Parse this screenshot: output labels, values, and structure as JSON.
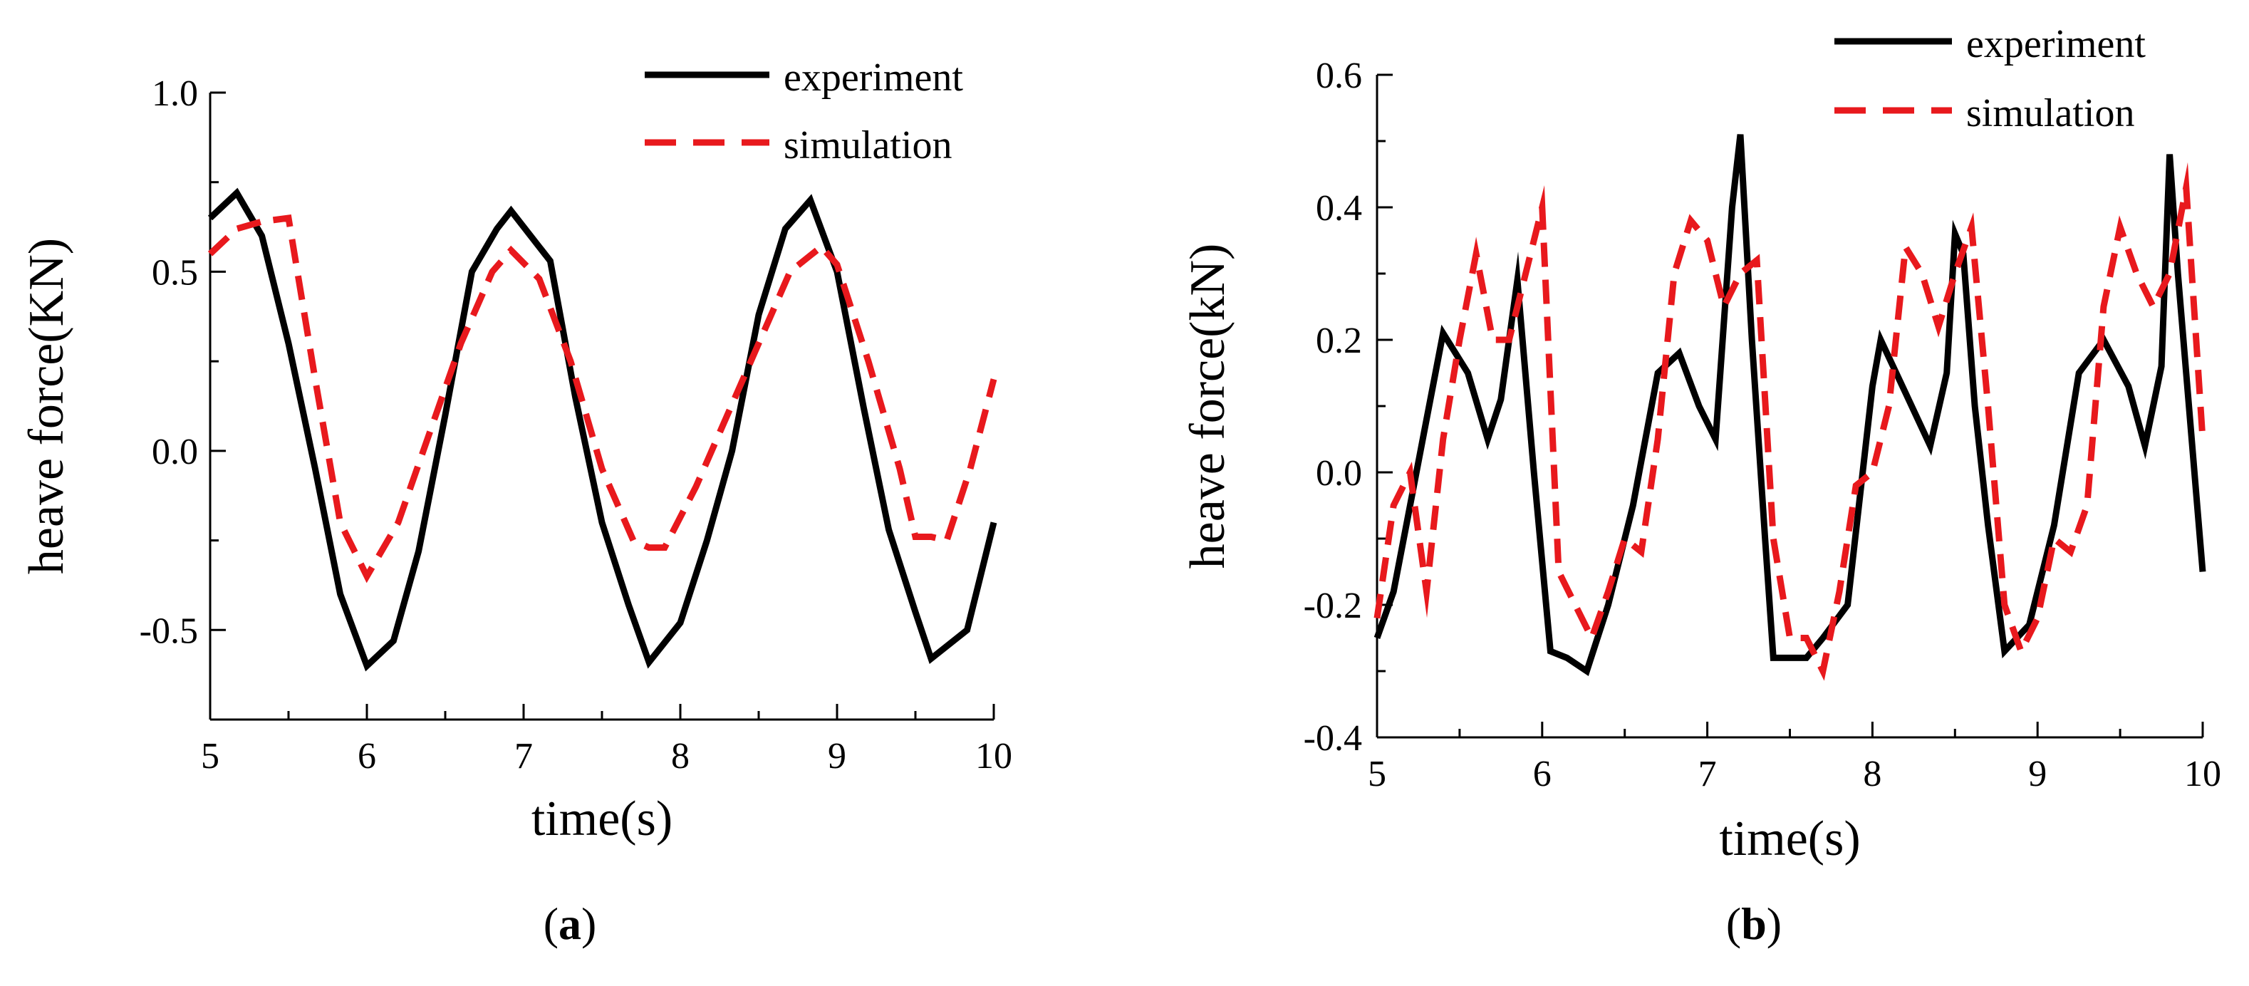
{
  "chart_data": [
    {
      "type": "line",
      "panel_label": {
        "open": "(",
        "letter": "a",
        "close": ")"
      },
      "xlabel": "time(s)",
      "ylabel": "heave force(KN)",
      "xlim": [
        5,
        10
      ],
      "ylim": [
        -0.75,
        1.0
      ],
      "xticks": [
        5,
        6,
        7,
        8,
        9,
        10
      ],
      "xtick_labels": [
        "5",
        "6",
        "7",
        "8",
        "9",
        "10"
      ],
      "yticks": [
        -0.5,
        0.0,
        0.5,
        1.0
      ],
      "ytick_labels": [
        "-0.5",
        "0.0",
        "0.5",
        "1.0"
      ],
      "legend_position": "top-right",
      "series": [
        {
          "name": "experiment",
          "color": "#000000",
          "style": "solid",
          "x": [
            5.0,
            5.17,
            5.33,
            5.5,
            5.67,
            5.83,
            6.0,
            6.17,
            6.33,
            6.5,
            6.67,
            6.83,
            6.92,
            7.17,
            7.33,
            7.5,
            7.67,
            7.8,
            8.0,
            8.17,
            8.33,
            8.5,
            8.67,
            8.83,
            9.0,
            9.17,
            9.33,
            9.5,
            9.6,
            9.83,
            10.0
          ],
          "y": [
            0.65,
            0.72,
            0.6,
            0.3,
            -0.05,
            -0.4,
            -0.6,
            -0.53,
            -0.28,
            0.1,
            0.5,
            0.62,
            0.67,
            0.53,
            0.15,
            -0.2,
            -0.43,
            -0.59,
            -0.48,
            -0.25,
            0.0,
            0.38,
            0.62,
            0.7,
            0.5,
            0.12,
            -0.22,
            -0.45,
            -0.58,
            -0.5,
            -0.2
          ]
        },
        {
          "name": "simulation",
          "color": "#e8191d",
          "style": "dashed",
          "x": [
            5.0,
            5.17,
            5.33,
            5.5,
            5.67,
            5.83,
            6.0,
            6.2,
            6.4,
            6.6,
            6.8,
            6.92,
            7.1,
            7.3,
            7.5,
            7.7,
            7.8,
            7.9,
            8.1,
            8.3,
            8.5,
            8.7,
            8.9,
            9.0,
            9.2,
            9.4,
            9.5,
            9.6,
            9.7,
            9.85,
            10.0
          ],
          "y": [
            0.55,
            0.62,
            0.64,
            0.65,
            0.2,
            -0.2,
            -0.35,
            -0.2,
            0.05,
            0.3,
            0.5,
            0.56,
            0.48,
            0.25,
            -0.05,
            -0.25,
            -0.27,
            -0.27,
            -0.1,
            0.1,
            0.3,
            0.5,
            0.57,
            0.52,
            0.25,
            -0.05,
            -0.24,
            -0.24,
            -0.25,
            -0.05,
            0.2
          ]
        }
      ]
    },
    {
      "type": "line",
      "panel_label": {
        "open": "(",
        "letter": "b",
        "close": ")"
      },
      "xlabel": "time(s)",
      "ylabel": "heave force(kN)",
      "xlim": [
        5,
        10
      ],
      "ylim": [
        -0.4,
        0.6
      ],
      "xticks": [
        5,
        6,
        7,
        8,
        9,
        10
      ],
      "xtick_labels": [
        "5",
        "6",
        "7",
        "8",
        "9",
        "10"
      ],
      "yticks": [
        -0.4,
        -0.2,
        0.0,
        0.2,
        0.4,
        0.6
      ],
      "ytick_labels": [
        "-0.4",
        "-0.2",
        "0.0",
        "0.2",
        "0.4",
        "0.6"
      ],
      "legend_position": "top-right",
      "series": [
        {
          "name": "experiment",
          "color": "#000000",
          "style": "solid",
          "x": [
            5.0,
            5.1,
            5.2,
            5.3,
            5.4,
            5.55,
            5.67,
            5.75,
            5.85,
            5.95,
            6.05,
            6.15,
            6.27,
            6.4,
            6.55,
            6.7,
            6.83,
            6.95,
            7.05,
            7.15,
            7.2,
            7.27,
            7.35,
            7.4,
            7.5,
            7.6,
            7.7,
            7.85,
            8.0,
            8.05,
            8.2,
            8.35,
            8.45,
            8.5,
            8.55,
            8.62,
            8.7,
            8.8,
            8.95,
            9.1,
            9.25,
            9.4,
            9.55,
            9.65,
            9.75,
            9.8,
            9.85,
            9.9,
            10.0
          ],
          "y": [
            -0.25,
            -0.18,
            -0.05,
            0.08,
            0.21,
            0.15,
            0.05,
            0.11,
            0.29,
            0.0,
            -0.27,
            -0.28,
            -0.3,
            -0.2,
            -0.05,
            0.15,
            0.18,
            0.1,
            0.05,
            0.4,
            0.51,
            0.2,
            -0.1,
            -0.28,
            -0.28,
            -0.28,
            -0.25,
            -0.2,
            0.13,
            0.2,
            0.12,
            0.04,
            0.15,
            0.36,
            0.33,
            0.1,
            -0.08,
            -0.27,
            -0.23,
            -0.08,
            0.15,
            0.2,
            0.13,
            0.04,
            0.16,
            0.48,
            0.3,
            0.15,
            -0.15
          ]
        },
        {
          "name": "simulation",
          "color": "#e8191d",
          "style": "dashed",
          "x": [
            5.0,
            5.1,
            5.2,
            5.3,
            5.4,
            5.5,
            5.6,
            5.7,
            5.8,
            5.9,
            6.0,
            6.1,
            6.2,
            6.3,
            6.4,
            6.5,
            6.6,
            6.7,
            6.8,
            6.9,
            7.0,
            7.1,
            7.2,
            7.3,
            7.4,
            7.5,
            7.6,
            7.7,
            7.8,
            7.9,
            8.0,
            8.1,
            8.2,
            8.3,
            8.4,
            8.5,
            8.6,
            8.7,
            8.8,
            8.9,
            9.0,
            9.1,
            9.2,
            9.3,
            9.4,
            9.5,
            9.6,
            9.7,
            9.8,
            9.9,
            10.0
          ],
          "y": [
            -0.22,
            -0.05,
            0.0,
            -0.18,
            0.05,
            0.2,
            0.33,
            0.2,
            0.2,
            0.3,
            0.4,
            -0.15,
            -0.2,
            -0.25,
            -0.18,
            -0.1,
            -0.12,
            0.05,
            0.3,
            0.38,
            0.35,
            0.25,
            0.3,
            0.32,
            -0.1,
            -0.25,
            -0.25,
            -0.3,
            -0.18,
            -0.02,
            0.0,
            0.1,
            0.34,
            0.3,
            0.22,
            0.3,
            0.37,
            0.1,
            -0.2,
            -0.27,
            -0.22,
            -0.1,
            -0.12,
            -0.05,
            0.25,
            0.37,
            0.3,
            0.25,
            0.3,
            0.43,
            0.05
          ]
        }
      ]
    }
  ]
}
